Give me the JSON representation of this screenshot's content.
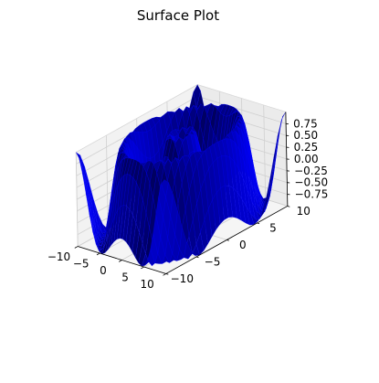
{
  "chart_data": {
    "type": "surface",
    "title": "Surface Plot",
    "xlabel": "",
    "ylabel": "",
    "zlabel": "",
    "x_range": [
      -10,
      10
    ],
    "y_range": [
      -10,
      10
    ],
    "z_range": [
      -1,
      1
    ],
    "x_ticks": [
      -10,
      -5,
      0,
      5,
      10
    ],
    "y_ticks": [
      -10,
      -5,
      0,
      5,
      10
    ],
    "z_ticks": [
      0.75,
      0.5,
      0.25,
      0.0,
      -0.25,
      -0.5,
      -0.75
    ],
    "x_tick_labels": [
      "−10",
      "−5",
      "0",
      "5",
      "10"
    ],
    "y_tick_labels": [
      "−10",
      "−5",
      "0",
      "5",
      "10"
    ],
    "z_tick_labels": [
      "0.75",
      "0.50",
      "0.25",
      "0.00",
      "−0.25",
      "−0.50",
      "−0.75"
    ],
    "surface_function": "z = sin(sqrt(x^2 + y^2))",
    "grid_points": 30,
    "surface_color": "#0000ff",
    "grid": true,
    "pane_color": "#f2f2f2",
    "grid_color": "#d0d0d0"
  }
}
